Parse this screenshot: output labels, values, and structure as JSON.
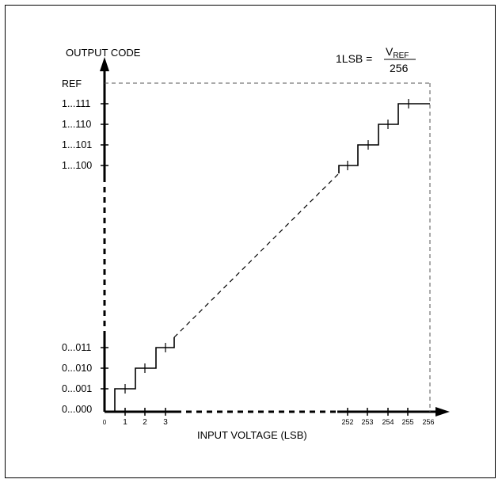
{
  "diagram": {
    "y_axis_title": "OUTPUT CODE",
    "x_axis_title": "INPUT VOLTAGE (LSB)",
    "formula": {
      "lhs": "1LSB =",
      "numerator_main": "V",
      "numerator_sub": "REF",
      "denominator": "256"
    },
    "y_labels": {
      "ref": "REF",
      "c1111": "1...111",
      "c1110": "1...110",
      "c1101": "1...101",
      "c1100": "1...100",
      "c0011": "0...011",
      "c0010": "0...010",
      "c0001": "0...001",
      "c0000": "0...000"
    },
    "x_labels": {
      "t0": "0",
      "t1": "1",
      "t2": "2",
      "t3": "3",
      "t252": "252",
      "t253": "253",
      "t254": "254",
      "t255": "255",
      "t256": "256"
    }
  }
}
